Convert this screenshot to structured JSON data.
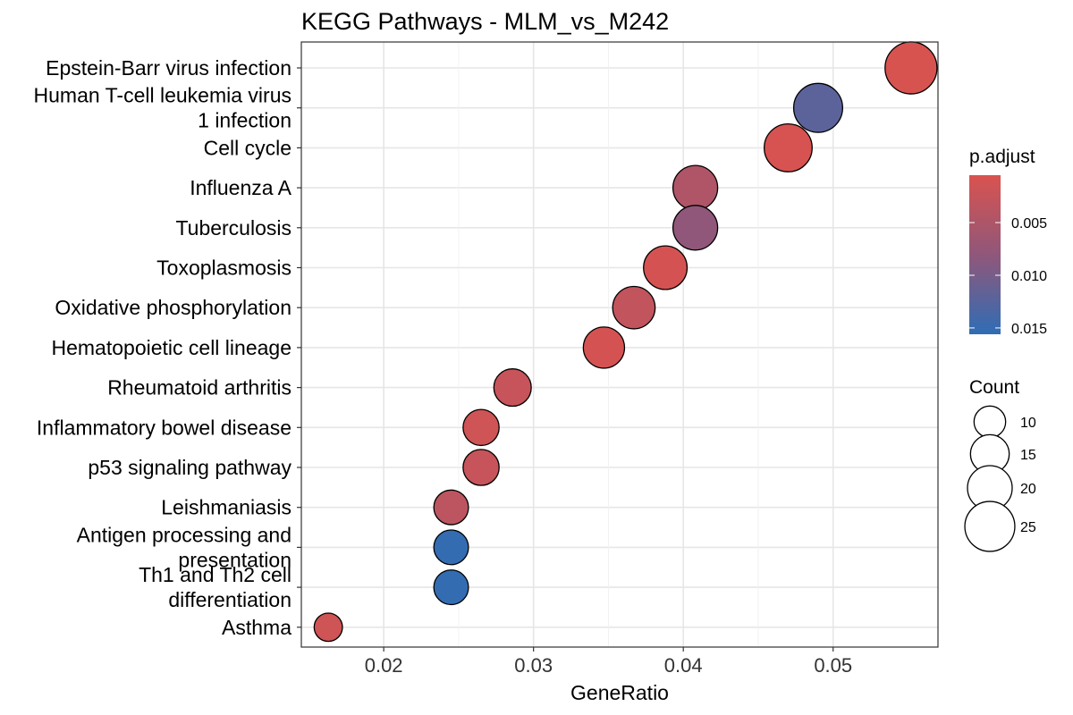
{
  "chart_data": {
    "type": "scatter",
    "title": "KEGG Pathways - MLM_vs_M242",
    "xlabel": "GeneRatio",
    "ylabel": "",
    "xlim": [
      0.0145,
      0.057
    ],
    "xticks": [
      0.02,
      0.03,
      0.04,
      0.05
    ],
    "xtick_labels": [
      "0.02",
      "0.03",
      "0.04",
      "0.05"
    ],
    "grid": true,
    "color_legend": {
      "title": "p.adjust",
      "placement": "right",
      "range": [
        0.0005,
        0.0156
      ],
      "ticks": [
        0.005,
        0.01,
        0.015
      ],
      "tick_labels": [
        "0.005",
        "0.010",
        "0.015"
      ],
      "low_color": "#d9534f",
      "mid_color": "#90577a",
      "high_color": "#2f6db5"
    },
    "size_legend": {
      "title": "Count",
      "placement": "right",
      "values": [
        10,
        15,
        20,
        25
      ],
      "labels": [
        "10",
        "15",
        "20",
        "25"
      ]
    },
    "points": [
      {
        "term_lines": [
          "Epstein-Barr virus infection"
        ],
        "gene_ratio": 0.0552,
        "count": 27,
        "p_adjust": 0.0007
      },
      {
        "term_lines": [
          "Human T-cell leukemia virus",
          "1 infection"
        ],
        "gene_ratio": 0.049,
        "count": 24,
        "p_adjust": 0.0122
      },
      {
        "term_lines": [
          "Cell cycle"
        ],
        "gene_ratio": 0.047,
        "count": 23,
        "p_adjust": 0.0008
      },
      {
        "term_lines": [
          "Influenza A"
        ],
        "gene_ratio": 0.0408,
        "count": 20,
        "p_adjust": 0.0048
      },
      {
        "term_lines": [
          "Tuberculosis"
        ],
        "gene_ratio": 0.0408,
        "count": 20,
        "p_adjust": 0.008
      },
      {
        "term_lines": [
          "Toxoplasmosis"
        ],
        "gene_ratio": 0.0388,
        "count": 19,
        "p_adjust": 0.001
      },
      {
        "term_lines": [
          "Oxidative phosphorylation"
        ],
        "gene_ratio": 0.0367,
        "count": 18,
        "p_adjust": 0.003
      },
      {
        "term_lines": [
          "Hematopoietic cell lineage"
        ],
        "gene_ratio": 0.0347,
        "count": 17,
        "p_adjust": 0.001
      },
      {
        "term_lines": [
          "Rheumatoid arthritis"
        ],
        "gene_ratio": 0.0286,
        "count": 14,
        "p_adjust": 0.0025
      },
      {
        "term_lines": [
          "Inflammatory bowel disease"
        ],
        "gene_ratio": 0.0265,
        "count": 13,
        "p_adjust": 0.0015
      },
      {
        "term_lines": [
          "p53 signaling pathway"
        ],
        "gene_ratio": 0.0265,
        "count": 13,
        "p_adjust": 0.0025
      },
      {
        "term_lines": [
          "Leishmaniasis"
        ],
        "gene_ratio": 0.0245,
        "count": 12,
        "p_adjust": 0.0035
      },
      {
        "term_lines": [
          "Antigen processing and",
          "presentation"
        ],
        "gene_ratio": 0.0245,
        "count": 12,
        "p_adjust": 0.0152
      },
      {
        "term_lines": [
          "Th1 and Th2 cell",
          "differentiation"
        ],
        "gene_ratio": 0.0245,
        "count": 12,
        "p_adjust": 0.0152
      },
      {
        "term_lines": [
          "Asthma"
        ],
        "gene_ratio": 0.0163,
        "count": 8,
        "p_adjust": 0.0015
      }
    ]
  }
}
